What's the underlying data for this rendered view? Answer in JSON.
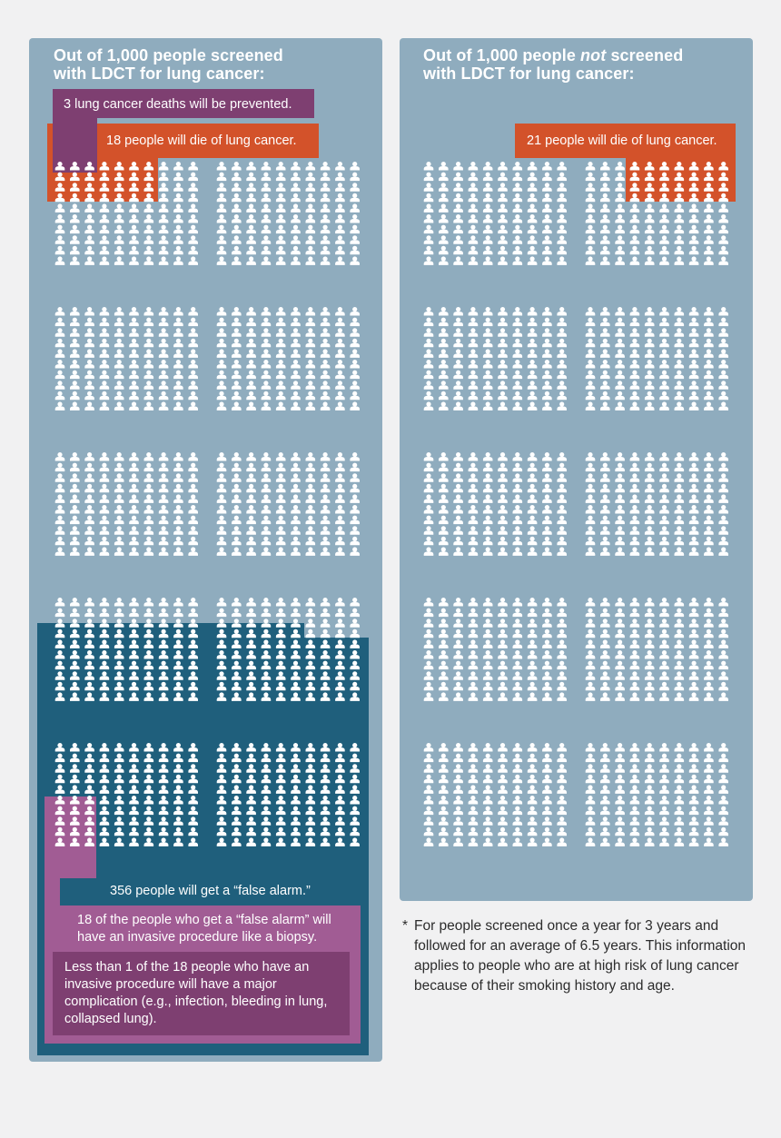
{
  "screened": {
    "title_line1": "Out of 1,000 people screened",
    "title_line2": "with LDCT for lung cancer:",
    "total_people": 1000,
    "deaths_prevented": {
      "label": "3 lung cancer deaths will be prevented.",
      "count": 3
    },
    "deaths": {
      "label": "18 people will die of lung cancer.",
      "count": 18
    },
    "false_alarm": {
      "label": "356 people will get a “false alarm.”",
      "count": 356
    },
    "invasive_procedure": {
      "label": "18 of the people who get a “false alarm” will have an invasive procedure like a biopsy.",
      "count": 18
    },
    "major_complication": {
      "label": "Less than 1 of the 18 people who have an invasive procedure will have a major complication (e.g., infection, bleeding in lung, collapsed lung)."
    }
  },
  "not_screened": {
    "title_pre": "Out of 1,000 people ",
    "title_em": "not",
    "title_post": " screened",
    "title_line2": "with LDCT for lung cancer:",
    "total_people": 1000,
    "deaths": {
      "label": "21 people will die of lung cancer.",
      "count": 21
    }
  },
  "footnote": {
    "marker": "*",
    "text": "For people screened once a year for 3 years and followed for an average of 6.5 years. This information applies to people who are at high risk of lung cancer because of their smoking history and age."
  },
  "colors": {
    "panel": "#8facbe",
    "icon": "#ffffff",
    "prevented": "#7e3f71",
    "deaths": "#d3522a",
    "false_alarm": "#1f5f7c",
    "invasive": "#a15c94",
    "complication": "#7e3f71",
    "page": "#f1f1f2"
  }
}
